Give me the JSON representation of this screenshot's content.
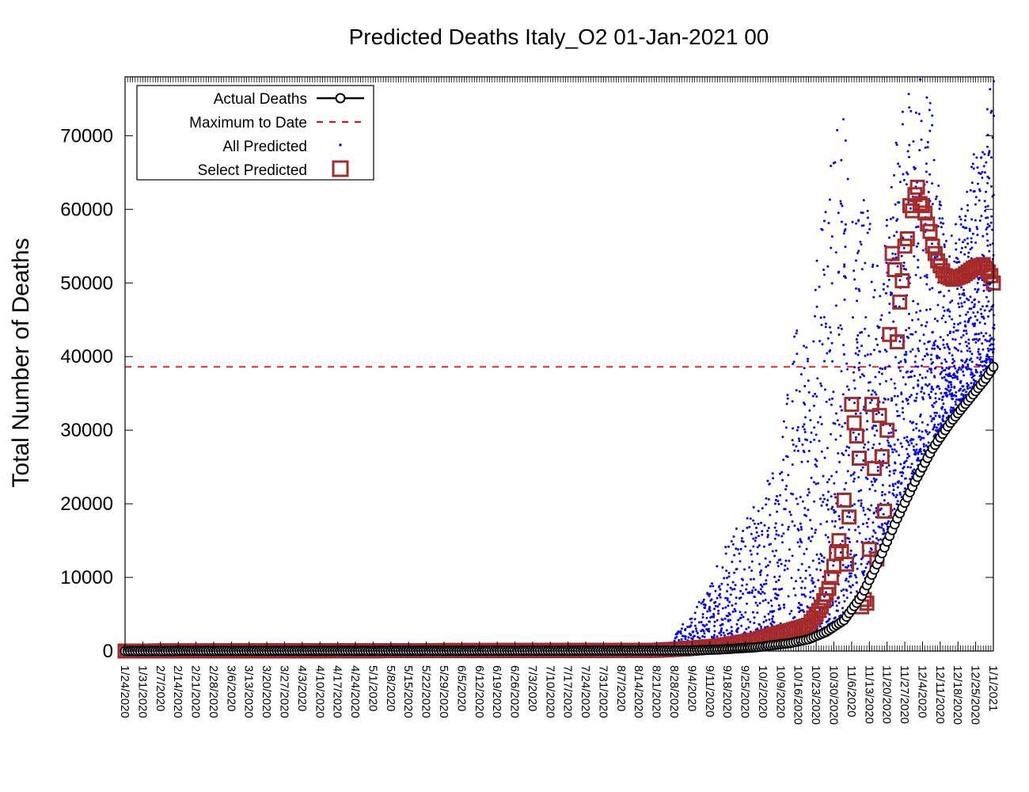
{
  "chart_data": {
    "type": "scatter",
    "title": "Predicted Deaths Italy_O2 01-Jan-2021 00",
    "xlabel": "",
    "ylabel": "Total Number of Deaths",
    "xlim": [
      "2020-01-24",
      "2021-01-01"
    ],
    "ylim": [
      0,
      78000
    ],
    "ytick_values": [
      0,
      10000,
      20000,
      30000,
      40000,
      50000,
      60000,
      70000
    ],
    "ytick_labels": [
      "0",
      "10000",
      "20000",
      "30000",
      "40000",
      "50000",
      "60000",
      "70000"
    ],
    "xtick_labels": [
      "1/24/2020",
      "1/31/2020",
      "2/7/2020",
      "2/14/2020",
      "2/21/2020",
      "2/28/2020",
      "3/6/2020",
      "3/13/2020",
      "3/20/2020",
      "3/27/2020",
      "4/3/2020",
      "4/10/2020",
      "4/17/2020",
      "4/24/2020",
      "5/1/2020",
      "5/8/2020",
      "5/15/2020",
      "5/22/2020",
      "5/29/2020",
      "6/5/2020",
      "6/12/2020",
      "6/19/2020",
      "6/26/2020",
      "7/3/2020",
      "7/10/2020",
      "7/17/2020",
      "7/24/2020",
      "7/31/2020",
      "8/7/2020",
      "8/14/2020",
      "8/21/2020",
      "8/28/2020",
      "9/4/2020",
      "9/11/2020",
      "9/18/2020",
      "9/25/2020",
      "10/2/2020",
      "10/9/2020",
      "10/16/2020",
      "10/23/2020",
      "10/30/2020",
      "11/6/2020",
      "11/13/2020",
      "11/20/2020",
      "11/27/2020",
      "12/4/2020",
      "12/11/2020",
      "12/18/2020",
      "12/25/2020",
      "1/1/2021"
    ],
    "grid": false,
    "legend_position": "top-left",
    "series": [
      {
        "name": "Actual Deaths",
        "style": "line-open-circle",
        "color": "#000000",
        "x": [
          "2020-01-24",
          "2020-09-01",
          "2020-09-15",
          "2020-09-29",
          "2020-10-06",
          "2020-10-13",
          "2020-10-20",
          "2020-10-27",
          "2020-11-03",
          "2020-11-10",
          "2020-11-17",
          "2020-11-24",
          "2020-12-01",
          "2020-12-08",
          "2020-12-15",
          "2020-12-22",
          "2020-12-29",
          "2021-01-01"
        ],
        "y": [
          0,
          60,
          200,
          500,
          800,
          1100,
          1600,
          2600,
          4200,
          7500,
          12500,
          18000,
          23000,
          27500,
          31000,
          34000,
          37000,
          38600
        ]
      },
      {
        "name": "Maximum to Date",
        "style": "dashed-line",
        "color": "#ff0000",
        "y": 38600
      },
      {
        "name": "All Predicted",
        "style": "dot",
        "color": "#0000ff",
        "x": [
          "2020-08-28",
          "2020-09-04",
          "2020-09-11",
          "2020-09-18",
          "2020-09-25",
          "2020-10-02",
          "2020-10-06",
          "2020-10-09",
          "2020-10-13",
          "2020-10-16",
          "2020-10-20",
          "2020-10-23",
          "2020-10-27",
          "2020-10-30",
          "2020-11-03",
          "2020-11-06",
          "2020-11-10",
          "2020-11-13",
          "2020-11-17",
          "2020-11-20",
          "2020-11-24",
          "2020-11-27",
          "2020-12-01",
          "2020-12-04",
          "2020-12-08",
          "2020-12-11",
          "2020-12-15",
          "2020-12-18",
          "2020-12-22",
          "2020-12-25",
          "2020-12-29",
          "2021-01-01"
        ],
        "y": [
          2500,
          4500,
          9000,
          14000,
          18000,
          21000,
          24000,
          26000,
          40000,
          45000,
          38000,
          52000,
          61000,
          67000,
          70000,
          55000,
          62000,
          60000,
          48000,
          58000,
          68000,
          75000,
          70000,
          78000,
          72000,
          60000,
          55000,
          58000,
          62000,
          68000,
          72000,
          77000
        ]
      },
      {
        "name": "Select Predicted",
        "style": "open-square",
        "color": "#a52a2a",
        "x": [
          "2020-01-24",
          "2020-08-21",
          "2020-09-01",
          "2020-09-15",
          "2020-09-29",
          "2020-10-06",
          "2020-10-13",
          "2020-10-20",
          "2020-10-22",
          "2020-10-25",
          "2020-10-28",
          "2020-10-30",
          "2020-11-01",
          "2020-11-02",
          "2020-11-03",
          "2020-11-04",
          "2020-11-05",
          "2020-11-06",
          "2020-11-07",
          "2020-11-08",
          "2020-11-09",
          "2020-11-10",
          "2020-11-11",
          "2020-11-12",
          "2020-11-13",
          "2020-11-14",
          "2020-11-15",
          "2020-11-16",
          "2020-11-17",
          "2020-11-18",
          "2020-11-19",
          "2020-11-20",
          "2020-11-21",
          "2020-11-22",
          "2020-11-23",
          "2020-11-24",
          "2020-11-25",
          "2020-11-26",
          "2020-11-27",
          "2020-11-28",
          "2020-11-29",
          "2020-11-30",
          "2020-12-01",
          "2020-12-02",
          "2020-12-03",
          "2020-12-04",
          "2020-12-05",
          "2020-12-06",
          "2020-12-07",
          "2020-12-08",
          "2020-12-10",
          "2020-12-13",
          "2020-12-16",
          "2020-12-20",
          "2020-12-24",
          "2020-12-28",
          "2020-12-31",
          "2021-01-01"
        ],
        "y": [
          0,
          100,
          300,
          700,
          1500,
          2200,
          2800,
          3500,
          4500,
          6000,
          8500,
          11500,
          15000,
          13500,
          20500,
          11800,
          18200,
          33500,
          31000,
          29200,
          26200,
          6000,
          7000,
          6500,
          13800,
          33500,
          24800,
          12500,
          32000,
          26400,
          19000,
          30000,
          43000,
          54000,
          51800,
          42000,
          47400,
          50300,
          55000,
          56000,
          60500,
          59800,
          62000,
          63000,
          60800,
          60500,
          59500,
          58000,
          57000,
          55000,
          53000,
          51000,
          50500,
          51000,
          52000,
          52500,
          51000,
          50000
        ]
      }
    ]
  }
}
